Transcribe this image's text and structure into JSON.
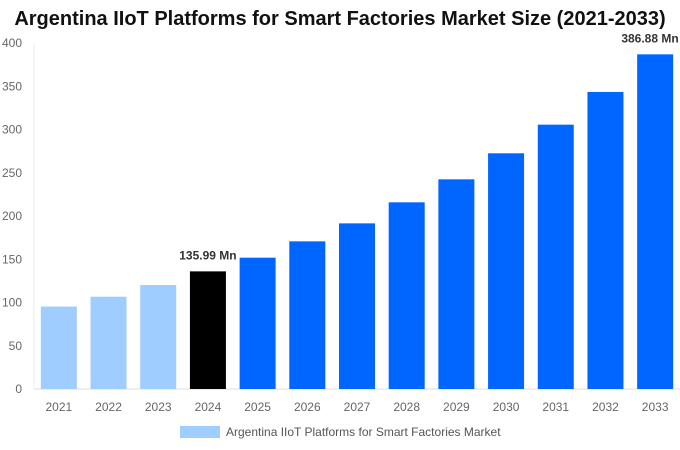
{
  "chart_data": {
    "type": "bar",
    "title": "Argentina IIoT Platforms for Smart Factories Market Size (2021-2033)",
    "categories": [
      "2021",
      "2022",
      "2023",
      "2024",
      "2025",
      "2026",
      "2027",
      "2028",
      "2029",
      "2030",
      "2031",
      "2032",
      "2033"
    ],
    "series": [
      {
        "name": "Argentina IIoT Platforms for Smart Factories Market",
        "values": [
          95.3,
          106.7,
          120.2,
          135.99,
          151.8,
          170.7,
          191.5,
          215.8,
          242.4,
          272.5,
          305.6,
          343.4,
          386.88
        ]
      }
    ],
    "data_labels": [
      {
        "category": "2024",
        "text": "135.99 Mn"
      },
      {
        "category": "2033",
        "text": "386.88 Mn"
      }
    ],
    "ylim": [
      0,
      400
    ],
    "yticks": [
      0,
      50,
      100,
      150,
      200,
      250,
      300,
      350,
      400
    ],
    "grid": false,
    "legend_placement": "bottom",
    "colors": {
      "historical": "#a0cdff",
      "base_year": "#000000",
      "forecast": "#0066ff"
    }
  }
}
